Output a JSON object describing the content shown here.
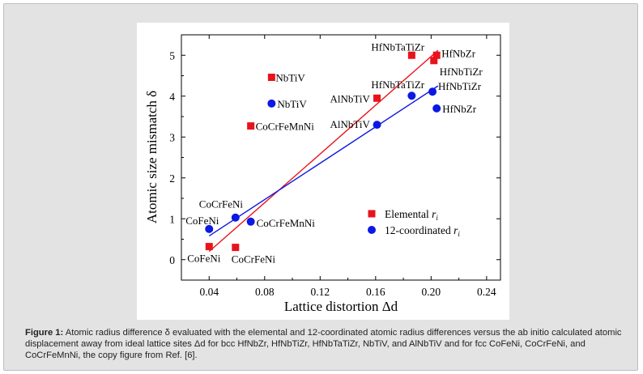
{
  "caption": {
    "label": "Figure 1:",
    "text": "Atomic radius difference δ evaluated with the elemental and 12-coordinated atomic radius differences versus the ab initio calculated atomic displacement away from ideal lattice sites Δd for bcc HfNbZr, HfNbTiZr, HfNbTaTiZr, NbTiV, and AlNbTiV and for fcc CoFeNi, CoCrFeNi, and CoCrFeMnNi, the copy figure from Ref. [6]."
  },
  "chart_data": {
    "type": "scatter",
    "xlabel": "Lattice distortion Δd",
    "ylabel": "Atomic size mismatch δ",
    "xlim": [
      0.02,
      0.25
    ],
    "ylim": [
      -0.5,
      5.5
    ],
    "xticks": [
      "0.04",
      "0.08",
      "0.12",
      "0.16",
      "0.20",
      "0.24"
    ],
    "xtick_values": [
      0.04,
      0.08,
      0.12,
      0.16,
      0.2,
      0.24
    ],
    "yticks": [
      "0",
      "1",
      "2",
      "3",
      "4",
      "5"
    ],
    "ytick_values": [
      0,
      1,
      2,
      3,
      4,
      5
    ],
    "series": [
      {
        "name": "Elemental ri",
        "legend_text": "Elemental ",
        "legend_sub": "ri",
        "marker": "square",
        "color": "#e8131b",
        "points": [
          {
            "label": "CoFeNi",
            "x": 0.04,
            "y": 0.32
          },
          {
            "label": "CoCrFeNi",
            "x": 0.059,
            "y": 0.3
          },
          {
            "label": "CoCrFeMnNi",
            "x": 0.07,
            "y": 3.27
          },
          {
            "label": "NbTiV",
            "x": 0.085,
            "y": 4.46
          },
          {
            "label": "AlNbTiV",
            "x": 0.161,
            "y": 3.95
          },
          {
            "label": "HfNbTaTiZr",
            "x": 0.186,
            "y": 5.0
          },
          {
            "label": "HfNbTiZr",
            "x": 0.202,
            "y": 4.87
          },
          {
            "label": "HfNbZr",
            "x": 0.204,
            "y": 5.0
          }
        ],
        "fit": {
          "x": [
            0.04,
            0.205
          ],
          "y": [
            0.2,
            5.12
          ]
        }
      },
      {
        "name": "12-coordinated ri",
        "legend_text": "12-coordinated ",
        "legend_sub": "ri",
        "marker": "circle",
        "color": "#0c18e3",
        "points": [
          {
            "label": "CoFeNi",
            "x": 0.04,
            "y": 0.75
          },
          {
            "label": "CoCrFeNi",
            "x": 0.059,
            "y": 1.03
          },
          {
            "label": "CoCrFeMnNi",
            "x": 0.07,
            "y": 0.93
          },
          {
            "label": "NbTiV",
            "x": 0.085,
            "y": 3.82
          },
          {
            "label": "AlNbTiV",
            "x": 0.161,
            "y": 3.3
          },
          {
            "label": "HfNbTaTiZr",
            "x": 0.186,
            "y": 4.01
          },
          {
            "label": "HfNbTiZr",
            "x": 0.201,
            "y": 4.11
          },
          {
            "label": "HfNbZr",
            "x": 0.204,
            "y": 3.7
          }
        ],
        "fit": {
          "x": [
            0.04,
            0.205
          ],
          "y": [
            0.58,
            4.25
          ]
        }
      }
    ],
    "legend": "center-right"
  }
}
